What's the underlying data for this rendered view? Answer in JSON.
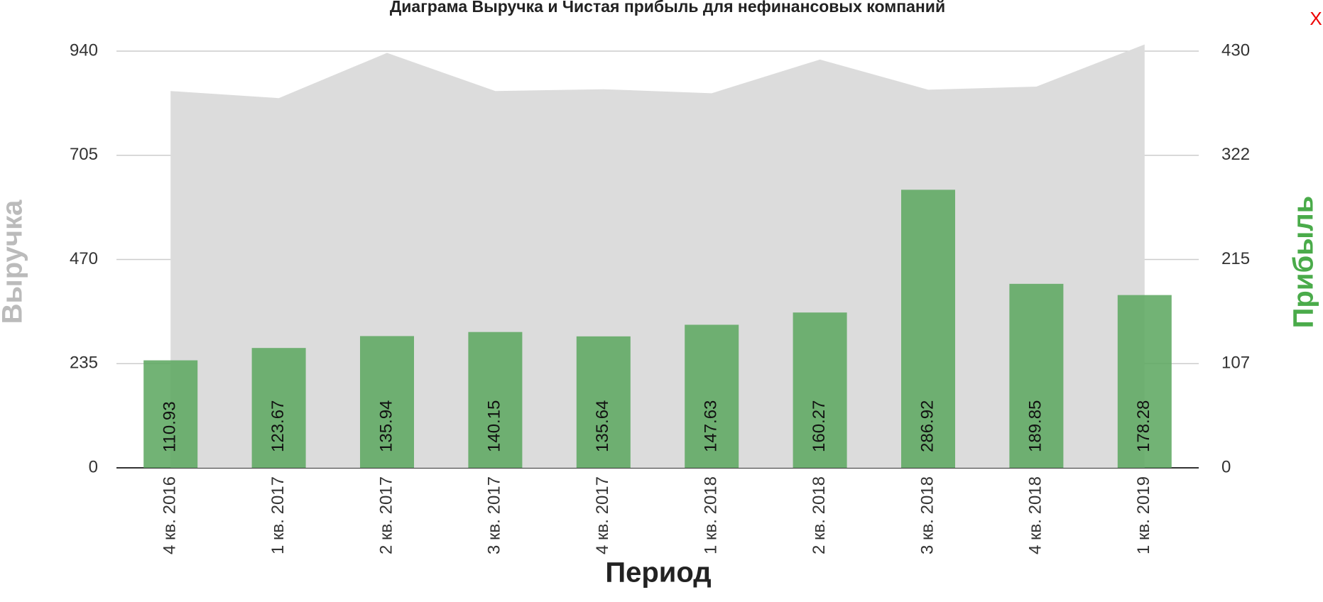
{
  "chart_data": {
    "type": "combo",
    "title": "Диаграма Выручка и Чистая прибыль для нефинансовых компаний",
    "x_label": "Период",
    "y_label": "Выручка",
    "y2_label": "Прибыль",
    "close": "X",
    "categories": [
      "4 кв. 2016",
      "1 кв. 2017",
      "2 кв. 2017",
      "3 кв. 2017",
      "4 кв. 2017",
      "1 кв. 2018",
      "2 кв. 2018",
      "3 кв. 2018",
      "4 кв. 2018",
      "1 кв. 2019"
    ],
    "series": [
      {
        "type": "area",
        "color": "#dcdcdc",
        "values": [
          850,
          834,
          936,
          850,
          854,
          845,
          921,
          853,
          860,
          955
        ]
      },
      {
        "type": "bar",
        "axis": "y2",
        "color": "#5fa862",
        "values": [
          110.93,
          123.67,
          135.94,
          140.15,
          135.64,
          147.63,
          160.27,
          286.92,
          189.85,
          178.28
        ]
      }
    ],
    "ylim": [
      0,
      940
    ],
    "yticks": [
      0,
      235,
      470,
      705,
      940
    ],
    "y2lim": [
      0,
      430
    ],
    "y2ticks": [
      0,
      {
        "value": 107.5,
        "label": "107"
      },
      215,
      {
        "value": 322.5,
        "label": "322"
      },
      430
    ],
    "grid": true
  }
}
